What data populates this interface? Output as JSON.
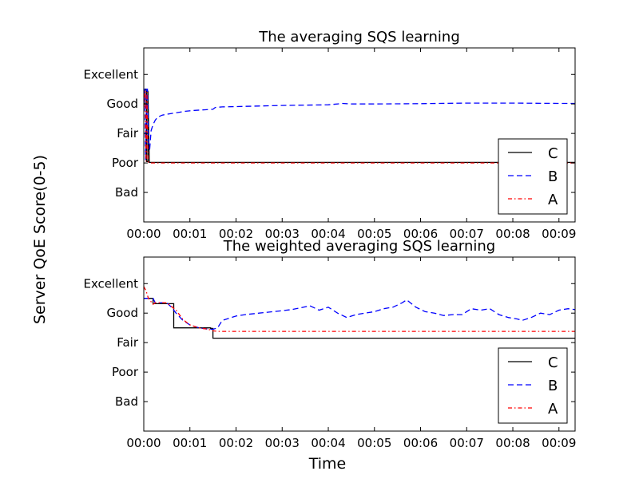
{
  "figure": {
    "ylabel": "Server QoE Score(0-5)",
    "xlabel": "Time"
  },
  "chart_data": [
    {
      "type": "line",
      "title": "The averaging SQS learning",
      "xlabel": "",
      "ylabel": "Server QoE Score(0-5)",
      "x_unit": "minutes",
      "xlim": [
        0,
        9.35
      ],
      "ylim": [
        0,
        5.9
      ],
      "x_ticks": [
        {
          "value": 0,
          "label": "00:00"
        },
        {
          "value": 1,
          "label": "00:01"
        },
        {
          "value": 2,
          "label": "00:02"
        },
        {
          "value": 3,
          "label": "00:03"
        },
        {
          "value": 4,
          "label": "00:04"
        },
        {
          "value": 5,
          "label": "00:05"
        },
        {
          "value": 6,
          "label": "00:06"
        },
        {
          "value": 7,
          "label": "00:07"
        },
        {
          "value": 8,
          "label": "00:08"
        },
        {
          "value": 9,
          "label": "00:09"
        }
      ],
      "y_ticks": [
        {
          "value": 1,
          "label": "Bad"
        },
        {
          "value": 2,
          "label": "Poor"
        },
        {
          "value": 3,
          "label": "Fair"
        },
        {
          "value": 4,
          "label": "Good"
        },
        {
          "value": 5,
          "label": "Excellent"
        }
      ],
      "grid": false,
      "legend": "lower-right",
      "series": [
        {
          "name": "C",
          "color": "#000000",
          "style": "solid",
          "x": [
            0,
            0.03,
            0.03,
            0.06,
            0.06,
            0.09,
            0.09,
            0.12,
            9.35
          ],
          "y": [
            4.0,
            4.0,
            4.5,
            4.5,
            2.05,
            2.05,
            4.45,
            2.02,
            2.02
          ]
        },
        {
          "name": "B",
          "color": "#0000ff",
          "style": "dashed",
          "x": [
            0,
            0.02,
            0.04,
            0.06,
            0.08,
            0.1,
            0.13,
            0.16,
            0.2,
            0.25,
            0.3,
            0.4,
            0.5,
            0.7,
            0.9,
            1.1,
            1.3,
            1.5,
            1.55,
            1.7,
            2.0,
            2.5,
            3.0,
            3.5,
            4.0,
            4.2,
            4.3,
            4.5,
            5.0,
            6.0,
            7.0,
            8.0,
            9.0,
            9.35
          ],
          "y": [
            4.5,
            4.5,
            2.1,
            4.5,
            4.5,
            2.6,
            2.5,
            3.1,
            3.3,
            3.45,
            3.55,
            3.62,
            3.65,
            3.7,
            3.75,
            3.78,
            3.8,
            3.82,
            3.88,
            3.9,
            3.91,
            3.93,
            3.95,
            3.96,
            3.97,
            4.0,
            4.02,
            4.0,
            4.0,
            4.01,
            4.03,
            4.03,
            4.02,
            4.02
          ]
        },
        {
          "name": "A",
          "color": "#ff0000",
          "style": "dashdot",
          "x": [
            0,
            0.03,
            0.05,
            0.07,
            0.09,
            0.12,
            9.35
          ],
          "y": [
            3.9,
            4.45,
            2.05,
            4.4,
            2.05,
            2.0,
            2.0
          ]
        }
      ]
    },
    {
      "type": "line",
      "title": "The weighted averaging SQS learning",
      "xlabel": "Time",
      "ylabel": "Server QoE Score(0-5)",
      "x_unit": "minutes",
      "xlim": [
        0,
        9.35
      ],
      "ylim": [
        0,
        5.9
      ],
      "x_ticks": [
        {
          "value": 0,
          "label": "00:00"
        },
        {
          "value": 1,
          "label": "00:01"
        },
        {
          "value": 2,
          "label": "00:02"
        },
        {
          "value": 3,
          "label": "00:03"
        },
        {
          "value": 4,
          "label": "00:04"
        },
        {
          "value": 5,
          "label": "00:05"
        },
        {
          "value": 6,
          "label": "00:06"
        },
        {
          "value": 7,
          "label": "00:07"
        },
        {
          "value": 8,
          "label": "00:08"
        },
        {
          "value": 9,
          "label": "00:09"
        }
      ],
      "y_ticks": [
        {
          "value": 1,
          "label": "Bad"
        },
        {
          "value": 2,
          "label": "Poor"
        },
        {
          "value": 3,
          "label": "Fair"
        },
        {
          "value": 4,
          "label": "Good"
        },
        {
          "value": 5,
          "label": "Excellent"
        }
      ],
      "grid": false,
      "legend": "lower-right",
      "series": [
        {
          "name": "C",
          "color": "#000000",
          "style": "solid",
          "x": [
            0,
            0.2,
            0.2,
            0.55,
            0.55,
            0.65,
            0.65,
            1.45,
            1.45,
            1.5,
            1.5,
            9.35
          ],
          "y": [
            4.5,
            4.5,
            4.32,
            4.32,
            4.32,
            4.32,
            3.5,
            3.5,
            3.48,
            3.48,
            3.15,
            3.15
          ]
        },
        {
          "name": "B",
          "color": "#0000ff",
          "style": "dashed",
          "x": [
            0,
            0.2,
            0.25,
            0.5,
            0.6,
            0.7,
            0.85,
            1.0,
            1.2,
            1.4,
            1.5,
            1.6,
            1.7,
            1.9,
            2.0,
            2.2,
            2.5,
            2.8,
            3.0,
            3.2,
            3.4,
            3.6,
            3.8,
            4.0,
            4.2,
            4.4,
            4.6,
            4.8,
            5.0,
            5.2,
            5.4,
            5.6,
            5.7,
            5.9,
            6.1,
            6.3,
            6.5,
            6.7,
            6.9,
            7.1,
            7.3,
            7.5,
            7.7,
            7.9,
            8.1,
            8.2,
            8.4,
            8.6,
            8.8,
            9.0,
            9.2,
            9.35
          ],
          "y": [
            4.5,
            4.5,
            4.35,
            4.35,
            4.2,
            4.0,
            3.75,
            3.6,
            3.5,
            3.45,
            3.45,
            3.5,
            3.75,
            3.85,
            3.9,
            3.95,
            4.0,
            4.05,
            4.08,
            4.12,
            4.18,
            4.25,
            4.1,
            4.2,
            4.0,
            3.85,
            3.95,
            4.0,
            4.05,
            4.15,
            4.2,
            4.35,
            4.45,
            4.2,
            4.05,
            4.0,
            3.92,
            3.95,
            3.95,
            4.15,
            4.1,
            4.15,
            3.95,
            3.85,
            3.8,
            3.75,
            3.85,
            4.0,
            3.95,
            4.1,
            4.15,
            4.12
          ]
        },
        {
          "name": "A",
          "color": "#ff0000",
          "style": "dashdot",
          "x": [
            0,
            0.05,
            0.1,
            0.2,
            0.25,
            0.5,
            0.7,
            0.85,
            1.0,
            1.2,
            1.4,
            1.5,
            1.6,
            9.35
          ],
          "y": [
            4.9,
            4.75,
            4.5,
            4.3,
            4.35,
            4.35,
            4.1,
            3.78,
            3.6,
            3.5,
            3.45,
            3.4,
            3.38,
            3.38
          ]
        }
      ]
    }
  ]
}
